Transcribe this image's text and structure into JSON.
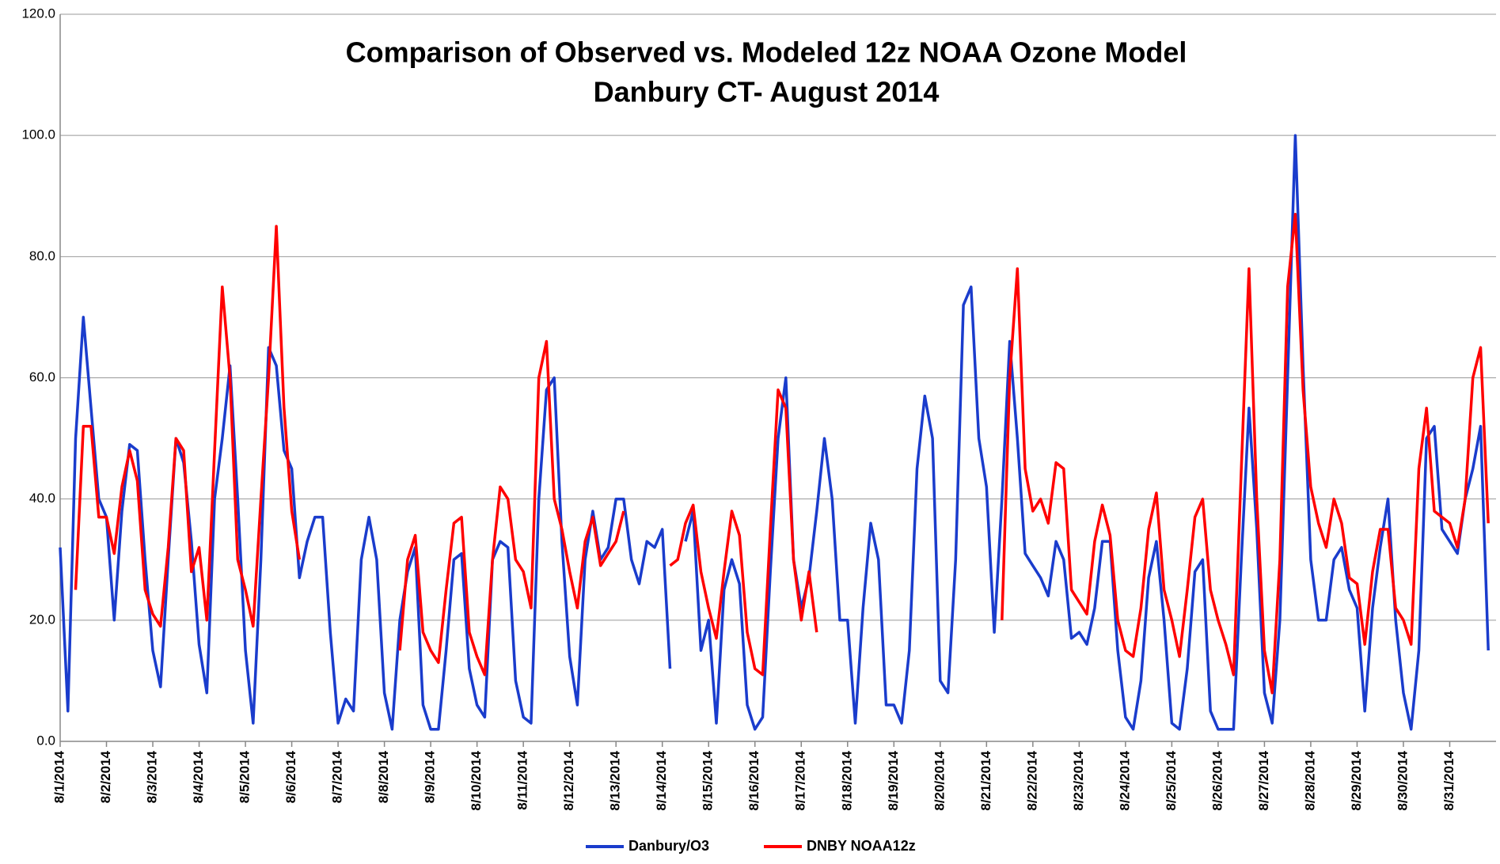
{
  "chart_data": {
    "type": "line",
    "title": "Comparison of Observed vs. Modeled 12z NOAA Ozone Model",
    "subtitle": "Danbury CT- August 2014",
    "categories": [
      "8/1/2014",
      null,
      null,
      null,
      null,
      null,
      "8/2/2014",
      null,
      null,
      null,
      null,
      null,
      "8/3/2014",
      null,
      null,
      null,
      null,
      null,
      "8/4/2014",
      null,
      null,
      null,
      null,
      null,
      "8/5/2014",
      null,
      null,
      null,
      null,
      null,
      "8/6/2014",
      null,
      null,
      null,
      null,
      null,
      "8/7/2014",
      null,
      null,
      null,
      null,
      null,
      "8/8/2014",
      null,
      null,
      null,
      null,
      null,
      "8/9/2014",
      null,
      null,
      null,
      null,
      null,
      "8/10/2014",
      null,
      null,
      null,
      null,
      null,
      "8/11/2014",
      null,
      null,
      null,
      null,
      null,
      "8/12/2014",
      null,
      null,
      null,
      null,
      null,
      "8/13/2014",
      null,
      null,
      null,
      null,
      null,
      "8/14/2014",
      null,
      null,
      null,
      null,
      null,
      "8/15/2014",
      null,
      null,
      null,
      null,
      null,
      "8/16/2014",
      null,
      null,
      null,
      null,
      null,
      "8/17/2014",
      null,
      null,
      null,
      null,
      null,
      "8/18/2014",
      null,
      null,
      null,
      null,
      null,
      "8/19/2014",
      null,
      null,
      null,
      null,
      null,
      "8/20/2014",
      null,
      null,
      null,
      null,
      null,
      "8/21/2014",
      null,
      null,
      null,
      null,
      null,
      "8/22/2014",
      null,
      null,
      null,
      null,
      null,
      "8/23/2014",
      null,
      null,
      null,
      null,
      null,
      "8/24/2014",
      null,
      null,
      null,
      null,
      null,
      "8/25/2014",
      null,
      null,
      null,
      null,
      null,
      "8/26/2014",
      null,
      null,
      null,
      null,
      null,
      "8/27/2014",
      null,
      null,
      null,
      null,
      null,
      "8/28/2014",
      null,
      null,
      null,
      null,
      null,
      "8/29/2014",
      null,
      null,
      null,
      null,
      null,
      "8/30/2014",
      null,
      null,
      null,
      null,
      null,
      "8/31/2014",
      null,
      null,
      null,
      null,
      null
    ],
    "series": [
      {
        "name": "Danbury/O3",
        "color": "#1a3ccc",
        "values": [
          32,
          5,
          50,
          70,
          55,
          40,
          37,
          20,
          38,
          49,
          48,
          30,
          15,
          9,
          30,
          50,
          46,
          33,
          16,
          8,
          40,
          50,
          62,
          40,
          15,
          3,
          30,
          65,
          62,
          48,
          45,
          27,
          33,
          37,
          37,
          18,
          3,
          7,
          5,
          30,
          37,
          30,
          8,
          2,
          20,
          28,
          32,
          6,
          2,
          2,
          15,
          30,
          31,
          12,
          6,
          4,
          30,
          33,
          32,
          10,
          4,
          3,
          40,
          58,
          60,
          33,
          14,
          6,
          30,
          38,
          30,
          32,
          40,
          40,
          30,
          26,
          33,
          32,
          35,
          12,
          null,
          33,
          38,
          15,
          20,
          3,
          25,
          30,
          26,
          6,
          2,
          4,
          28,
          50,
          60,
          30,
          22,
          27,
          38,
          50,
          40,
          20,
          20,
          3,
          22,
          36,
          30,
          6,
          6,
          3,
          15,
          45,
          57,
          50,
          10,
          8,
          30,
          72,
          75,
          50,
          42,
          18,
          40,
          66,
          50,
          31,
          29,
          27,
          24,
          33,
          30,
          17,
          18,
          16,
          22,
          33,
          33,
          15,
          4,
          2,
          10,
          27,
          33,
          20,
          3,
          2,
          12,
          28,
          30,
          5,
          2,
          2,
          2,
          30,
          55,
          35,
          8,
          3,
          20,
          60,
          100,
          62,
          30,
          20,
          20,
          30,
          32,
          25,
          22,
          5,
          22,
          32,
          40,
          20,
          8,
          2,
          15,
          50,
          52,
          35,
          33,
          31,
          40,
          45,
          52,
          15
        ]
      },
      {
        "name": "DNBY NOAA12z",
        "color": "#ff0000",
        "values": [
          null,
          null,
          25,
          52,
          52,
          37,
          37,
          31,
          42,
          48,
          43,
          25,
          21,
          19,
          32,
          50,
          48,
          28,
          32,
          20,
          48,
          75,
          60,
          30,
          25,
          19,
          40,
          60,
          85,
          55,
          38,
          30,
          null,
          null,
          null,
          null,
          null,
          null,
          null,
          null,
          null,
          null,
          null,
          null,
          15,
          30,
          34,
          18,
          15,
          13,
          25,
          36,
          37,
          18,
          14,
          11,
          30,
          42,
          40,
          30,
          28,
          22,
          60,
          66,
          40,
          35,
          28,
          22,
          33,
          37,
          29,
          31,
          33,
          38,
          null,
          null,
          null,
          null,
          null,
          29,
          30,
          36,
          39,
          28,
          22,
          17,
          28,
          38,
          34,
          18,
          12,
          11,
          35,
          58,
          55,
          30,
          20,
          28,
          18,
          null,
          null,
          null,
          null,
          null,
          null,
          null,
          null,
          null,
          null,
          null,
          null,
          null,
          null,
          null,
          null,
          null,
          null,
          null,
          null,
          null,
          null,
          null,
          20,
          60,
          78,
          45,
          38,
          40,
          36,
          46,
          45,
          25,
          23,
          21,
          33,
          39,
          34,
          20,
          15,
          14,
          22,
          35,
          41,
          25,
          20,
          14,
          25,
          37,
          40,
          25,
          20,
          16,
          11,
          45,
          78,
          40,
          15,
          8,
          30,
          75,
          87,
          58,
          42,
          36,
          32,
          40,
          36,
          27,
          26,
          16,
          28,
          35,
          35,
          22,
          20,
          16,
          45,
          55,
          38,
          37,
          36,
          32,
          40,
          60,
          65,
          36
        ]
      }
    ],
    "ylim": [
      0,
      120
    ],
    "yticks": [
      {
        "value": 0,
        "label": "0.0"
      },
      {
        "value": 20,
        "label": "20.0"
      },
      {
        "value": 40,
        "label": "40.0"
      },
      {
        "value": 60,
        "label": "60.0"
      },
      {
        "value": 80,
        "label": "80.0"
      },
      {
        "value": 100,
        "label": "100.0"
      },
      {
        "value": 120,
        "label": "120.0"
      }
    ],
    "grid": true,
    "legend": "bottom"
  }
}
